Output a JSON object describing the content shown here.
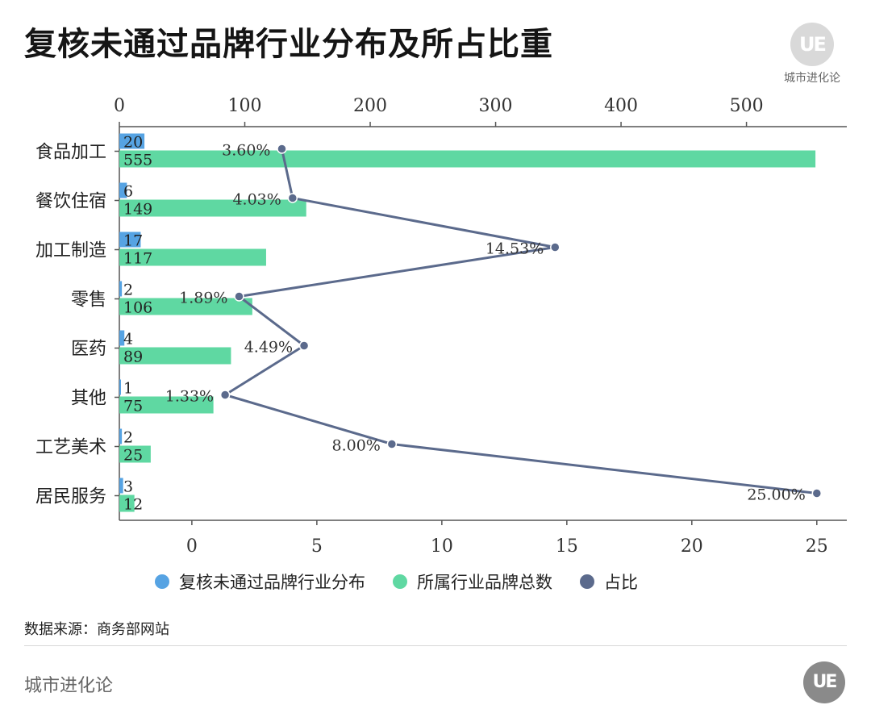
{
  "title": "复核未通过品牌行业分布及所占比重",
  "brand": {
    "name": "城市进化论",
    "badge": "UE"
  },
  "source": "数据来源：商务部网站",
  "footer": "城市进化论",
  "chart_data": {
    "type": "bar",
    "categories": [
      "食品加工",
      "餐饮住宿",
      "加工制造",
      "零售",
      "医药",
      "其他",
      "工艺美术",
      "居民服务"
    ],
    "series": [
      {
        "name": "复核未通过品牌行业分布",
        "type": "bar",
        "axis": "top",
        "color": "#56a3e3",
        "values": [
          20,
          6,
          17,
          2,
          4,
          1,
          2,
          3
        ]
      },
      {
        "name": "所属行业品牌总数",
        "type": "bar",
        "axis": "top",
        "color": "#5fd8a2",
        "values": [
          555,
          149,
          117,
          106,
          89,
          75,
          25,
          12
        ]
      },
      {
        "name": "占比",
        "type": "line",
        "axis": "bottom",
        "color": "#5b6a8c",
        "values": [
          3.6,
          4.03,
          14.53,
          1.89,
          4.49,
          1.33,
          8.0,
          25.0
        ],
        "labels": [
          "3.60%",
          "4.03%",
          "14.53%",
          "1.89%",
          "4.49%",
          "1.33%",
          "8.00%",
          "25.00%"
        ]
      }
    ],
    "top_axis": {
      "min": 0,
      "max": 580,
      "ticks": [
        0,
        100,
        200,
        300,
        400,
        500
      ]
    },
    "bottom_axis": {
      "min": -2.9,
      "max": 26.2,
      "ticks": [
        0,
        5,
        10,
        15,
        20,
        25
      ]
    },
    "legend": "bottom",
    "grid": false
  }
}
